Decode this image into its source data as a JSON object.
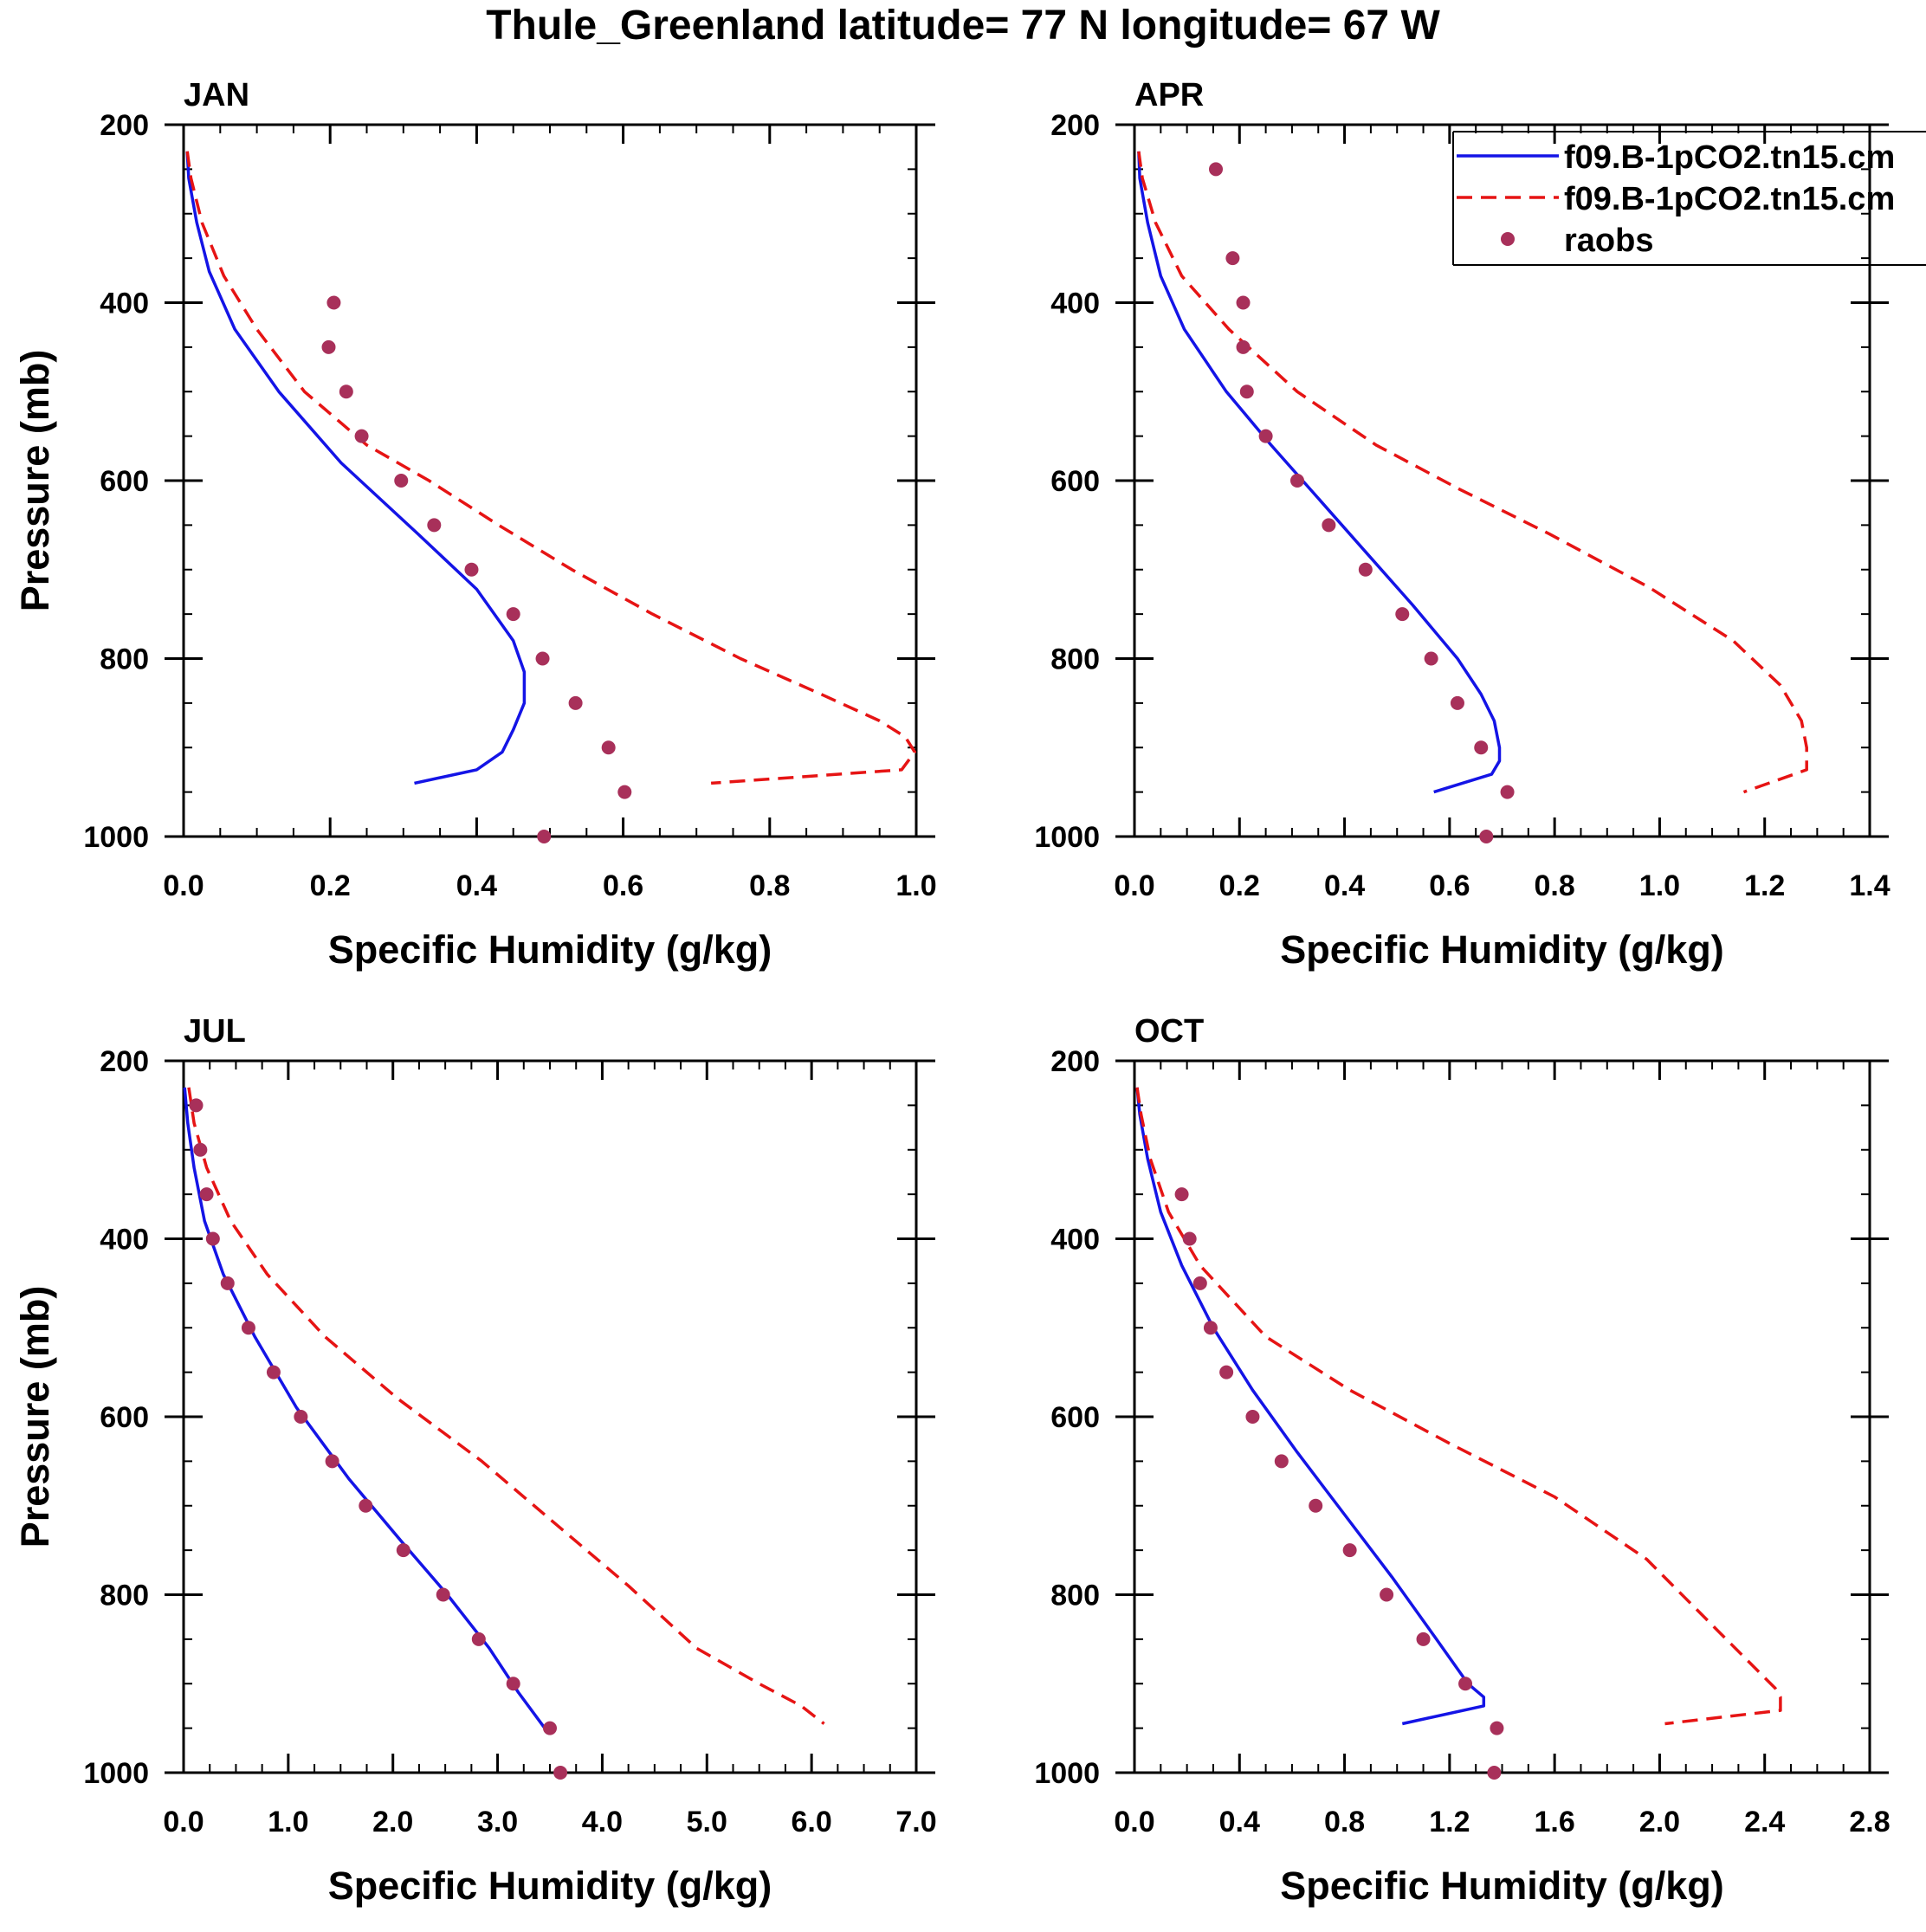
{
  "page": {
    "title": "Thule_Greenland  latitude= 77 N longitude= 67 W"
  },
  "colors": {
    "series1": "#1414e6",
    "series2": "#e61414",
    "obs": "#a8305a",
    "axis": "#000000"
  },
  "legend": {
    "entries": [
      {
        "name": "f09.B-1pCO2.tn15.cm",
        "style": "solid"
      },
      {
        "name": "f09.B-1pCO2.tn15.cm",
        "style": "dashed"
      },
      {
        "name": "raobs",
        "style": "markers"
      }
    ]
  },
  "chart_data": [
    {
      "type": "line",
      "title": "JAN",
      "xlabel": "Specific Humidity (g/kg)",
      "ylabel": "Pressure (mb)",
      "xlim": [
        0,
        1.0
      ],
      "ylim": [
        200,
        1000
      ],
      "y_reversed": true,
      "xticks": [
        0,
        0.2,
        0.4,
        0.6,
        0.8,
        1.0
      ],
      "xtick_labels": [
        "0.0",
        "0.2",
        "0.4",
        "0.6",
        "0.8",
        "1.0"
      ],
      "xminor": 0.05,
      "yticks": [
        200,
        400,
        600,
        800,
        1000
      ],
      "ytick_labels": [
        "200",
        "400",
        "600",
        "800",
        "1000"
      ],
      "yminor": 50,
      "series": [
        {
          "name": "f09.B-1pCO2.tn15.cm",
          "style": "solid",
          "x": [
            0.005,
            0.007,
            0.018,
            0.035,
            0.07,
            0.13,
            0.215,
            0.32,
            0.4,
            0.45,
            0.465,
            0.465,
            0.45,
            0.435,
            0.4,
            0.315
          ],
          "y": [
            230,
            260,
            310,
            365,
            430,
            500,
            580,
            660,
            722,
            780,
            815,
            850,
            880,
            905,
            925,
            940
          ]
        },
        {
          "name": "f09.B-1pCO2.tn15.cm",
          "style": "dashed",
          "x": [
            0.005,
            0.01,
            0.025,
            0.055,
            0.1,
            0.165,
            0.25,
            0.335,
            0.43,
            0.53,
            0.64,
            0.76,
            0.87,
            0.95,
            0.985,
            0.998,
            0.98,
            0.72
          ],
          "y": [
            230,
            260,
            310,
            370,
            430,
            500,
            560,
            600,
            650,
            700,
            750,
            800,
            840,
            870,
            888,
            905,
            925,
            940
          ]
        },
        {
          "name": "raobs",
          "style": "markers",
          "x": [
            0.205,
            0.198,
            0.222,
            0.243,
            0.297,
            0.342,
            0.393,
            0.45,
            0.49,
            0.535,
            0.58,
            0.602,
            0.492
          ],
          "y": [
            400,
            450,
            500,
            550,
            600,
            650,
            700,
            750,
            800,
            850,
            900,
            950,
            1000
          ]
        }
      ]
    },
    {
      "type": "line",
      "title": "APR",
      "xlabel": "Specific Humidity (g/kg)",
      "ylabel": "",
      "xlim": [
        0,
        1.4
      ],
      "ylim": [
        200,
        1000
      ],
      "y_reversed": true,
      "xticks": [
        0,
        0.2,
        0.4,
        0.6,
        0.8,
        1.0,
        1.2,
        1.4
      ],
      "xtick_labels": [
        "0.0",
        "0.2",
        "0.4",
        "0.6",
        "0.8",
        "1.0",
        "1.2",
        "1.4"
      ],
      "xminor": 0.05,
      "yticks": [
        200,
        400,
        600,
        800,
        1000
      ],
      "ytick_labels": [
        "200",
        "400",
        "600",
        "800",
        "1000"
      ],
      "yminor": 50,
      "series": [
        {
          "name": "f09.B-1pCO2.tn15.cm",
          "style": "solid",
          "x": [
            0.008,
            0.01,
            0.025,
            0.05,
            0.095,
            0.175,
            0.26,
            0.35,
            0.44,
            0.53,
            0.615,
            0.66,
            0.685,
            0.695,
            0.695,
            0.68,
            0.57
          ],
          "y": [
            230,
            260,
            310,
            370,
            430,
            500,
            560,
            620,
            680,
            740,
            800,
            840,
            870,
            900,
            915,
            930,
            950
          ]
        },
        {
          "name": "f09.B-1pCO2.tn15.cm",
          "style": "dashed",
          "x": [
            0.008,
            0.015,
            0.04,
            0.09,
            0.18,
            0.31,
            0.46,
            0.62,
            0.79,
            0.98,
            1.14,
            1.23,
            1.27,
            1.28,
            1.28,
            1.16
          ],
          "y": [
            230,
            260,
            310,
            370,
            430,
            500,
            560,
            610,
            660,
            720,
            780,
            830,
            870,
            900,
            925,
            950
          ]
        },
        {
          "name": "raobs",
          "style": "markers",
          "x": [
            0.155,
            0.187,
            0.207,
            0.207,
            0.214,
            0.25,
            0.31,
            0.37,
            0.44,
            0.51,
            0.565,
            0.615,
            0.66,
            0.71,
            0.67
          ],
          "y": [
            250,
            350,
            400,
            450,
            500,
            550,
            600,
            650,
            700,
            750,
            800,
            850,
            900,
            950,
            1000
          ]
        }
      ]
    },
    {
      "type": "line",
      "title": "JUL",
      "xlabel": "Specific Humidity (g/kg)",
      "ylabel": "Pressure (mb)",
      "xlim": [
        0,
        7.0
      ],
      "ylim": [
        200,
        1000
      ],
      "y_reversed": true,
      "xticks": [
        0,
        1,
        2,
        3,
        4,
        5,
        6,
        7
      ],
      "xtick_labels": [
        "0.0",
        "1.0",
        "2.0",
        "3.0",
        "4.0",
        "5.0",
        "6.0",
        "7.0"
      ],
      "xminor": 0.25,
      "yticks": [
        200,
        400,
        600,
        800,
        1000
      ],
      "ytick_labels": [
        "200",
        "400",
        "600",
        "800",
        "1000"
      ],
      "yminor": 50,
      "series": [
        {
          "name": "f09.B-1pCO2.tn15.cm",
          "style": "solid",
          "x": [
            0.01,
            0.04,
            0.1,
            0.2,
            0.38,
            0.68,
            1.08,
            1.58,
            2.08,
            2.52,
            2.92,
            3.2,
            3.45
          ],
          "y": [
            230,
            270,
            320,
            380,
            440,
            510,
            590,
            670,
            740,
            800,
            860,
            910,
            950
          ]
        },
        {
          "name": "f09.B-1pCO2.tn15.cm",
          "style": "dashed",
          "x": [
            0.05,
            0.1,
            0.22,
            0.45,
            0.8,
            1.35,
            2.05,
            2.85,
            3.55,
            4.25,
            4.9,
            5.5,
            5.9,
            6.12
          ],
          "y": [
            230,
            270,
            320,
            380,
            440,
            510,
            580,
            650,
            720,
            790,
            860,
            900,
            925,
            945
          ]
        },
        {
          "name": "raobs",
          "style": "markers",
          "x": [
            0.12,
            0.16,
            0.22,
            0.28,
            0.42,
            0.62,
            0.86,
            1.12,
            1.42,
            1.74,
            2.1,
            2.48,
            2.82,
            3.15,
            3.5,
            3.6
          ],
          "y": [
            250,
            300,
            350,
            400,
            450,
            500,
            550,
            600,
            650,
            700,
            750,
            800,
            850,
            900,
            950,
            1000
          ]
        }
      ]
    },
    {
      "type": "line",
      "title": "OCT",
      "xlabel": "Specific Humidity (g/kg)",
      "ylabel": "",
      "xlim": [
        0,
        2.8
      ],
      "ylim": [
        200,
        1000
      ],
      "y_reversed": true,
      "xticks": [
        0,
        0.4,
        0.8,
        1.2,
        1.6,
        2.0,
        2.4,
        2.8
      ],
      "xtick_labels": [
        "0.0",
        "0.4",
        "0.8",
        "1.2",
        "1.6",
        "2.0",
        "2.4",
        "2.8"
      ],
      "xminor": 0.1,
      "yticks": [
        200,
        400,
        600,
        800,
        1000
      ],
      "ytick_labels": [
        "200",
        "400",
        "600",
        "800",
        "1000"
      ],
      "yminor": 50,
      "series": [
        {
          "name": "f09.B-1pCO2.tn15.cm",
          "style": "solid",
          "x": [
            0.01,
            0.02,
            0.05,
            0.1,
            0.18,
            0.3,
            0.45,
            0.62,
            0.8,
            0.98,
            1.15,
            1.27,
            1.33,
            1.33,
            1.02
          ],
          "y": [
            230,
            260,
            310,
            370,
            430,
            500,
            570,
            640,
            710,
            780,
            850,
            900,
            915,
            925,
            945
          ]
        },
        {
          "name": "f09.B-1pCO2.tn15.cm",
          "style": "dashed",
          "x": [
            0.01,
            0.025,
            0.06,
            0.13,
            0.25,
            0.5,
            0.82,
            1.2,
            1.6,
            1.95,
            2.22,
            2.44,
            2.46,
            2.46,
            2.02
          ],
          "y": [
            230,
            260,
            310,
            370,
            430,
            510,
            570,
            630,
            690,
            760,
            840,
            905,
            915,
            930,
            945
          ]
        },
        {
          "name": "raobs",
          "style": "markers",
          "x": [
            0.18,
            0.21,
            0.25,
            0.29,
            0.35,
            0.45,
            0.56,
            0.69,
            0.82,
            0.96,
            1.1,
            1.26,
            1.38,
            1.37
          ],
          "y": [
            350,
            400,
            450,
            500,
            550,
            600,
            650,
            700,
            750,
            800,
            850,
            900,
            950,
            1000
          ]
        }
      ]
    }
  ]
}
